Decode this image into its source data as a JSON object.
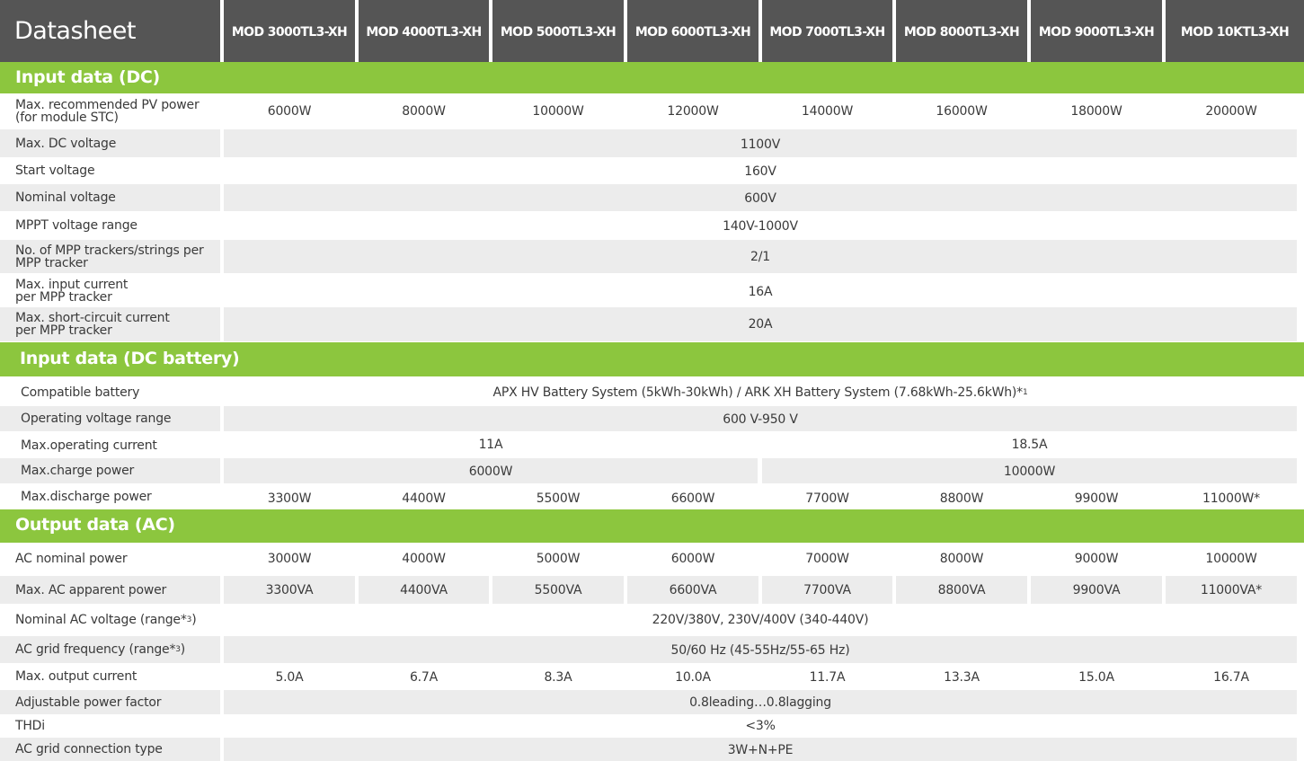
{
  "header": {
    "title": "Datasheet",
    "models": [
      "MOD 3000TL3-XH",
      "MOD 4000TL3-XH",
      "MOD 5000TL3-XH",
      "MOD 6000TL3-XH",
      "MOD 7000TL3-XH",
      "MOD 8000TL3-XH",
      "MOD 9000TL3-XH",
      "MOD 10KTL3-XH"
    ]
  },
  "sections": {
    "dc": "Input data (DC)",
    "battery": "Input data (DC battery)",
    "ac": "Output data (AC)"
  },
  "dc": {
    "max_pv_power": {
      "label_line1": "Max. recommended PV power",
      "label_line2": "(for module STC)",
      "values": [
        "6000W",
        "8000W",
        "10000W",
        "12000W",
        "14000W",
        "16000W",
        "18000W",
        "20000W"
      ]
    },
    "max_dc_voltage": {
      "label": "Max. DC voltage",
      "value": "1100V"
    },
    "start_voltage": {
      "label": "Start voltage",
      "value": "160V"
    },
    "nominal_voltage": {
      "label": "Nominal voltage",
      "value": "600V"
    },
    "mppt_range": {
      "label": "MPPT voltage range",
      "value": "140V-1000V"
    },
    "trackers": {
      "label_line1": "No. of MPP trackers/strings per",
      "label_line2": "MPP tracker",
      "value": "2/1"
    },
    "max_input_current": {
      "label_line1": "Max. input current",
      "label_line2": "per MPP tracker",
      "value": "16A"
    },
    "max_short_circuit": {
      "label_line1": "Max. short-circuit current",
      "label_line2": "per MPP tracker",
      "value": "20A"
    }
  },
  "battery": {
    "compatible": {
      "label": "Compatible battery",
      "value": "APX HV Battery System (5kWh-30kWh) / ARK XH Battery System (7.68kWh-25.6kWh)*",
      "footnote": "1"
    },
    "operating_voltage": {
      "label": "Operating voltage range",
      "value": "600 V-950 V"
    },
    "operating_current": {
      "label": "Max.operating current",
      "values": [
        "11A",
        "18.5A"
      ]
    },
    "charge_power": {
      "label": "Max.charge power",
      "values": [
        "6000W",
        "10000W"
      ]
    },
    "discharge_power": {
      "label": "Max.discharge power",
      "values": [
        "3300W",
        "4400W",
        "5500W",
        "6600W",
        "7700W",
        "8800W",
        "9900W",
        "11000W*"
      ]
    }
  },
  "ac": {
    "nominal_power": {
      "label": "AC nominal power",
      "values": [
        "3000W",
        "4000W",
        "5000W",
        "6000W",
        "7000W",
        "8000W",
        "9000W",
        "10000W"
      ]
    },
    "apparent_power": {
      "label": "Max. AC apparent power",
      "values": [
        "3300VA",
        "4400VA",
        "5500VA",
        "6600VA",
        "7700VA",
        "8800VA",
        "9900VA",
        "11000VA*"
      ]
    },
    "nominal_voltage": {
      "label": "Nominal AC voltage (range*",
      "label_sup": "3",
      "label_end": ")",
      "value": "220V/380V, 230V/400V (340-440V)"
    },
    "grid_frequency": {
      "label": "AC grid frequency (range*",
      "label_sup": "3",
      "label_end": ")",
      "value": "50/60 Hz (45-55Hz/55-65 Hz)"
    },
    "output_current": {
      "label": "Max. output current",
      "values": [
        "5.0A",
        "6.7A",
        "8.3A",
        "10.0A",
        "11.7A",
        "13.3A",
        "15.0A",
        "16.7A"
      ]
    },
    "power_factor": {
      "label": "Adjustable power factor",
      "value": "0.8leading…0.8lagging"
    },
    "thdi": {
      "label": "THDi",
      "value": "<3%"
    },
    "connection_type": {
      "label": "AC grid connection type",
      "value": "3W+N+PE"
    }
  },
  "colors": {
    "header_bg": "#555555",
    "section_green": "#8cc63e",
    "row_grey": "#ececec"
  }
}
